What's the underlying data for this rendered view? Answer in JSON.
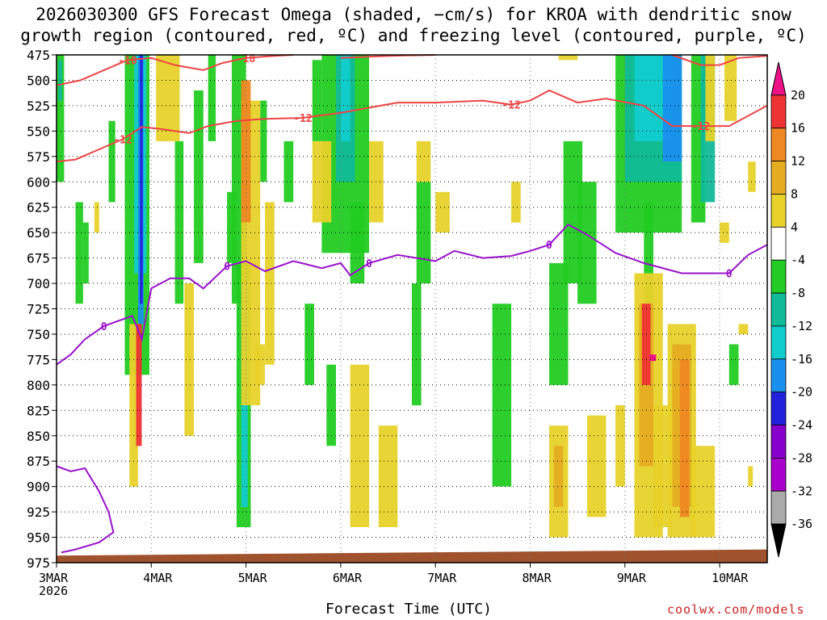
{
  "title_line1": "2026030300 GFS Forecast Omega (shaded, −cm/s) for KROA with dendritic snow",
  "title_line2": "growth region (contoured, red, ºC) and freezing level (contoured, purple, ºC)",
  "xlabel": "Forecast Time (UTC)",
  "credit": "coolwx.com/models",
  "colors": {
    "green": "#22cc22",
    "teal": "#11bb99",
    "cyan": "#11cccc",
    "blue": "#1a90ee",
    "darkblue": "#2222dd",
    "purple": "#8800cc",
    "violet": "#aa00cc",
    "gray": "#aaaaaa",
    "yellow": "#e8d22a",
    "gold": "#e6ac22",
    "orange": "#ee8822",
    "red": "#ee3333",
    "magenta": "#ee1188",
    "black": "#000000",
    "dgz_line": "#ee4444",
    "frz_line": "#9911cc",
    "ground": "#a0522d"
  },
  "chart_data": {
    "type": "time-height shaded contour",
    "y_axis": {
      "label": "",
      "unit": "hPa",
      "ticks": [
        475,
        500,
        525,
        550,
        575,
        600,
        625,
        650,
        675,
        700,
        725,
        750,
        775,
        800,
        825,
        850,
        875,
        900,
        925,
        950,
        975
      ],
      "range": [
        975,
        475
      ]
    },
    "x_axis": {
      "label": "Forecast Time (UTC)",
      "ticks": [
        "3MAR",
        "4MAR",
        "5MAR",
        "6MAR",
        "7MAR",
        "8MAR",
        "9MAR",
        "10MAR"
      ],
      "first_tick_year": "2026",
      "range_days": [
        0,
        7.5
      ]
    },
    "grid": true,
    "colorbar": {
      "levels": [
        "20",
        "16",
        "12",
        "8",
        "4",
        "-4",
        "-8",
        "-12",
        "-16",
        "-20",
        "-24",
        "-28",
        "-32",
        "-36"
      ],
      "colors": [
        "#ee1188",
        "#ee3333",
        "#ee8822",
        "#e6ac22",
        "#e8d22a",
        "#ffffff",
        "#22cc22",
        "#11bb99",
        "#11cccc",
        "#1a90ee",
        "#2222dd",
        "#8800cc",
        "#aa00cc",
        "#aaaaaa",
        "#000000"
      ]
    },
    "contours": [
      {
        "name": "-18",
        "labels": [
          "-18",
          "-18"
        ],
        "color": "#ee4444",
        "points": [
          [
            0,
            505
          ],
          [
            0.25,
            500
          ],
          [
            0.5,
            490
          ],
          [
            0.75,
            480
          ],
          [
            1.0,
            478
          ],
          [
            1.25,
            485
          ],
          [
            1.55,
            490
          ],
          [
            1.75,
            483
          ],
          [
            2.0,
            478
          ],
          [
            2.3,
            476
          ],
          [
            2.5,
            475
          ]
        ]
      },
      {
        "name": "-12",
        "labels": [
          "-12",
          "-12",
          "-12",
          "-12"
        ],
        "color": "#ee4444",
        "points": [
          [
            0,
            580
          ],
          [
            0.2,
            578
          ],
          [
            0.45,
            568
          ],
          [
            0.7,
            558
          ],
          [
            0.9,
            546
          ],
          [
            1.1,
            548
          ],
          [
            1.4,
            552
          ],
          [
            1.6,
            545
          ],
          [
            1.9,
            540
          ],
          [
            2.2,
            538
          ],
          [
            2.6,
            537
          ],
          [
            3.0,
            532
          ],
          [
            3.3,
            527
          ],
          [
            3.6,
            522
          ],
          [
            4.0,
            522
          ],
          [
            4.5,
            520
          ],
          [
            4.8,
            524
          ],
          [
            5.0,
            520
          ],
          [
            5.2,
            510
          ],
          [
            5.5,
            522
          ],
          [
            5.8,
            518
          ],
          [
            6.2,
            525
          ],
          [
            6.5,
            545
          ],
          [
            6.8,
            545
          ],
          [
            7.1,
            545
          ],
          [
            7.5,
            525
          ]
        ]
      },
      {
        "name": "-12 upper",
        "labels": [],
        "color": "#ee4444",
        "points": [
          [
            3.0,
            478
          ],
          [
            3.5,
            476
          ],
          [
            4.0,
            475
          ]
        ]
      },
      {
        "name": "-12 upper right",
        "labels": [],
        "color": "#ee4444",
        "points": [
          [
            6.5,
            475
          ],
          [
            6.8,
            485
          ],
          [
            7.0,
            485
          ],
          [
            7.2,
            478
          ],
          [
            7.5,
            476
          ]
        ]
      },
      {
        "name": "0",
        "labels": [
          "0",
          "0",
          "0",
          "0",
          "0"
        ],
        "color": "#9911cc",
        "points": [
          [
            0,
            780
          ],
          [
            0.15,
            770
          ],
          [
            0.3,
            755
          ],
          [
            0.5,
            742
          ],
          [
            0.8,
            732
          ],
          [
            0.9,
            755
          ],
          [
            1.0,
            705
          ],
          [
            1.2,
            695
          ],
          [
            1.4,
            695
          ],
          [
            1.55,
            705
          ],
          [
            1.8,
            683
          ],
          [
            2.0,
            678
          ],
          [
            2.2,
            688
          ],
          [
            2.5,
            678
          ],
          [
            2.8,
            685
          ],
          [
            3.0,
            680
          ],
          [
            3.1,
            692
          ],
          [
            3.3,
            680
          ],
          [
            3.6,
            672
          ],
          [
            4.0,
            678
          ],
          [
            4.2,
            668
          ],
          [
            4.5,
            675
          ],
          [
            4.8,
            673
          ],
          [
            5.0,
            668
          ],
          [
            5.2,
            662
          ],
          [
            5.4,
            642
          ],
          [
            5.6,
            652
          ],
          [
            5.9,
            670
          ],
          [
            6.2,
            680
          ],
          [
            6.6,
            690
          ],
          [
            6.9,
            690
          ],
          [
            7.1,
            690
          ],
          [
            7.3,
            672
          ],
          [
            7.5,
            662
          ]
        ]
      },
      {
        "name": "0 low",
        "labels": [],
        "color": "#9911cc",
        "points": [
          [
            0,
            880
          ],
          [
            0.15,
            885
          ],
          [
            0.3,
            882
          ],
          [
            0.45,
            905
          ],
          [
            0.55,
            925
          ],
          [
            0.6,
            945
          ],
          [
            0.45,
            955
          ],
          [
            0.2,
            962
          ],
          [
            0.05,
            965
          ]
        ]
      }
    ],
    "shaded_features": [
      {
        "x": [
          0.0,
          0.1
        ],
        "p": [
          475,
          600
        ],
        "value": -8
      },
      {
        "x": [
          0.85,
          0.92
        ],
        "p": [
          475,
          800
        ],
        "value": -20
      },
      {
        "x": [
          0.85,
          0.9
        ],
        "p": [
          740,
          860
        ],
        "value": 16
      },
      {
        "x": [
          1.95,
          2.05
        ],
        "p": [
          490,
          640
        ],
        "value": 12
      },
      {
        "x": [
          1.95,
          2.1
        ],
        "p": [
          680,
          940
        ],
        "value": -12
      },
      {
        "x": [
          2.9,
          3.3
        ],
        "p": [
          475,
          680
        ],
        "value": -8
      },
      {
        "x": [
          5.2,
          5.4
        ],
        "p": [
          840,
          950
        ],
        "value": 8
      },
      {
        "x": [
          6.2,
          6.3
        ],
        "p": [
          720,
          800
        ],
        "value": 16
      },
      {
        "x": [
          6.6,
          6.7
        ],
        "p": [
          775,
          930
        ],
        "value": 12
      },
      {
        "x": [
          6.0,
          6.9
        ],
        "p": [
          475,
          620
        ],
        "value": -12
      }
    ]
  }
}
